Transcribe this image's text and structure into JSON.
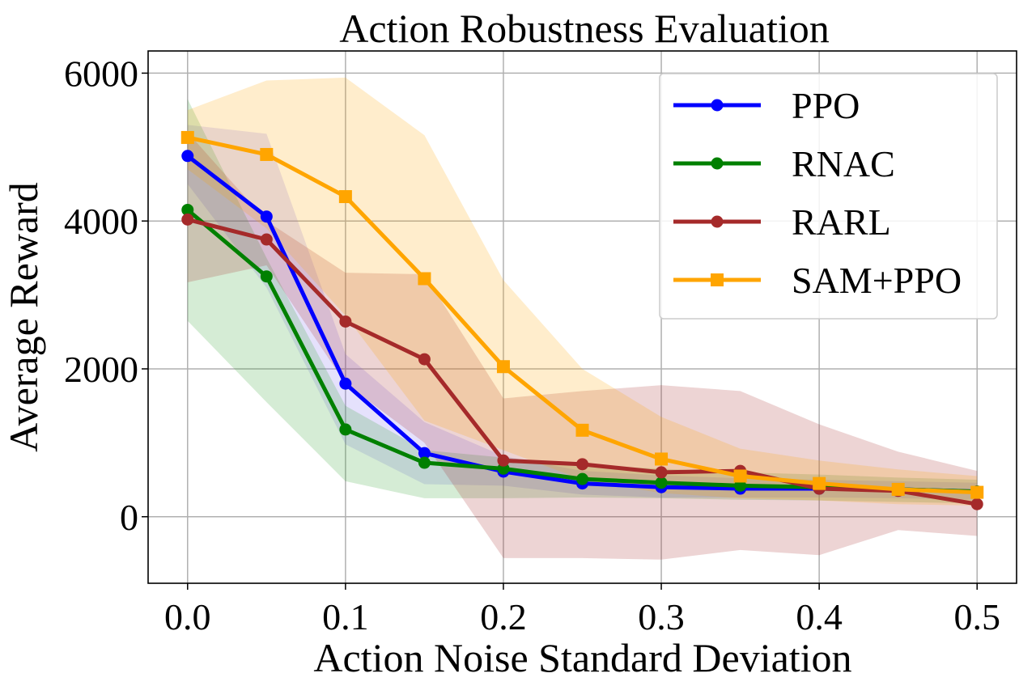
{
  "chart_data": {
    "type": "line",
    "title": "Action Robustness Evaluation",
    "xlabel": "Action Noise Standard Deviation",
    "ylabel": "Average Reward",
    "xlim": [
      -0.025,
      0.525
    ],
    "ylim": [
      -900,
      6300
    ],
    "xticks": [
      0.0,
      0.1,
      0.2,
      0.3,
      0.4,
      0.5
    ],
    "xtick_labels": [
      "0.0",
      "0.1",
      "0.2",
      "0.3",
      "0.4",
      "0.5"
    ],
    "yticks": [
      0,
      2000,
      4000,
      6000
    ],
    "ytick_labels": [
      "0",
      "2000",
      "4000",
      "6000"
    ],
    "grid": true,
    "legend_position": "top-right",
    "x": [
      0.0,
      0.05,
      0.1,
      0.15,
      0.2,
      0.25,
      0.3,
      0.35,
      0.4,
      0.45,
      0.5
    ],
    "series": [
      {
        "name": "PPO",
        "color": "#0000ff",
        "marker": "circle",
        "values": [
          4880,
          4060,
          1800,
          860,
          610,
          450,
          400,
          380,
          380,
          370,
          340
        ],
        "band_upper": [
          5300,
          5180,
          2200,
          1280,
          820,
          620,
          560,
          520,
          500,
          480,
          460
        ],
        "band_lower": [
          4500,
          3100,
          980,
          440,
          420,
          300,
          260,
          260,
          260,
          250,
          230
        ],
        "band_color": "#7b68ee"
      },
      {
        "name": "RNAC",
        "color": "#008000",
        "marker": "circle",
        "values": [
          4150,
          3250,
          1180,
          730,
          650,
          510,
          460,
          420,
          400,
          370,
          340
        ],
        "band_upper": [
          5650,
          3500,
          1500,
          900,
          800,
          700,
          650,
          600,
          570,
          530,
          500
        ],
        "band_lower": [
          2650,
          1550,
          480,
          250,
          250,
          260,
          250,
          230,
          220,
          200,
          180
        ],
        "band_color": "#2ca02c"
      },
      {
        "name": "RARL",
        "color": "#a52a2a",
        "marker": "circle",
        "values": [
          4020,
          3750,
          2640,
          2130,
          760,
          710,
          600,
          620,
          380,
          350,
          170
        ],
        "band_upper": [
          5200,
          4000,
          3300,
          3280,
          1600,
          1700,
          1780,
          1700,
          1250,
          880,
          620
        ],
        "band_lower": [
          3170,
          3400,
          1800,
          1000,
          -560,
          -560,
          -580,
          -450,
          -520,
          -180,
          -260
        ],
        "band_color": "#a52a2a"
      },
      {
        "name": "SAM+PPO",
        "color": "#ffa500",
        "marker": "square",
        "values": [
          5130,
          4900,
          4330,
          3220,
          2030,
          1170,
          780,
          550,
          450,
          370,
          330
        ],
        "band_upper": [
          5500,
          5900,
          5940,
          5160,
          3200,
          2000,
          1350,
          920,
          760,
          640,
          550
        ],
        "band_lower": [
          4700,
          3900,
          2720,
          1300,
          900,
          500,
          320,
          250,
          220,
          170,
          150
        ],
        "band_color": "#ffa500"
      }
    ]
  }
}
